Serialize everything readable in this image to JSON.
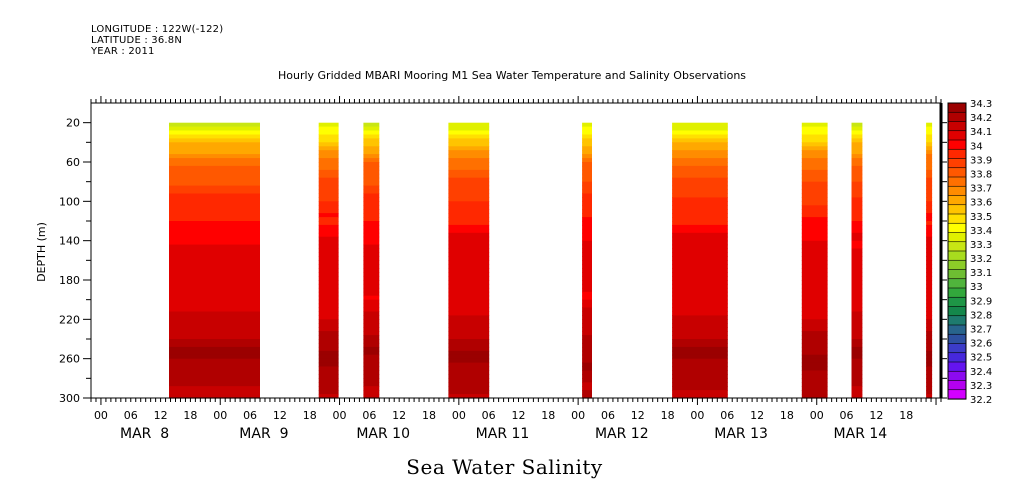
{
  "header": {
    "longitude": "LONGITUDE : 122W(-122)",
    "latitude": "LATITUDE : 36.8N",
    "year": "YEAR : 2011"
  },
  "chart_data": {
    "type": "heatmap",
    "title": "Hourly Gridded MBARI Mooring M1 Sea Water Temperature and Salinity Observations",
    "xlabel": "Sea Water Salinity",
    "ylabel": "DEPTH (m)",
    "y_reversed": true,
    "ylim": [
      0,
      300
    ],
    "yticks": [
      20,
      60,
      100,
      140,
      180,
      220,
      260,
      300
    ],
    "xlim_hours_from_mar8_00": [
      -2,
      169
    ],
    "x_hour_ticks": [
      "00",
      "06",
      "12",
      "18",
      "00",
      "06",
      "12",
      "18",
      "00",
      "06",
      "12",
      "18",
      "00",
      "06",
      "12",
      "18",
      "00",
      "06",
      "12",
      "18",
      "00",
      "06",
      "12",
      "18",
      "00",
      "06",
      "12",
      "18"
    ],
    "x_date_labels": [
      "MAR  8",
      "MAR  9",
      "MAR 10",
      "MAR 11",
      "MAR 12",
      "MAR 13",
      "MAR 14"
    ],
    "colorbar": {
      "levels": [
        34.3,
        34.2,
        34.1,
        34,
        33.9,
        33.8,
        33.7,
        33.6,
        33.5,
        33.4,
        33.3,
        33.2,
        33.1,
        33,
        32.9,
        32.8,
        32.7,
        32.6,
        32.5,
        32.4,
        32.3,
        32.2
      ],
      "labels": [
        "34.3",
        "34.2",
        "34.1",
        "34",
        "33.9",
        "33.8",
        "33.7",
        "33.6",
        "33.5",
        "33.4",
        "33.3",
        "33.2",
        "33.1",
        "33",
        "32.9",
        "32.8",
        "32.7",
        "32.6",
        "32.5",
        "32.4",
        "32.3",
        "32.2"
      ],
      "colors": [
        "#9b0000",
        "#b00000",
        "#c80000",
        "#e00000",
        "#ff0000",
        "#ff2800",
        "#ff4000",
        "#ff5800",
        "#ff7000",
        "#ff8c00",
        "#ffa800",
        "#ffc400",
        "#ffe000",
        "#ffff00",
        "#e0f000",
        "#c8e614",
        "#a8dc1e",
        "#8ccd28",
        "#6ebe32",
        "#50b43c",
        "#32a83c",
        "#1e9646",
        "#14874b",
        "#1e7a6e",
        "#28648c",
        "#2d50a0",
        "#3c3cc8",
        "#4628dc",
        "#6414f0",
        "#8c0af0",
        "#b400f0",
        "#d200ff"
      ]
    },
    "depth_profile_typical": [
      {
        "depth": 20,
        "value": 33.3
      },
      {
        "depth": 40,
        "value": 33.55
      },
      {
        "depth": 60,
        "value": 33.75
      },
      {
        "depth": 80,
        "value": 33.85
      },
      {
        "depth": 100,
        "value": 33.92
      },
      {
        "depth": 120,
        "value": 33.97
      },
      {
        "depth": 140,
        "value": 34.05
      },
      {
        "depth": 170,
        "value": 34.08
      },
      {
        "depth": 200,
        "value": 34.05
      },
      {
        "depth": 220,
        "value": 34.12
      },
      {
        "depth": 240,
        "value": 34.18
      },
      {
        "depth": 255,
        "value": 34.25
      },
      {
        "depth": 280,
        "value": 34.2
      },
      {
        "depth": 300,
        "value": 34.15
      }
    ],
    "data_segments_hours_from_mar8_00": [
      {
        "start": 13.7,
        "end": 32.0
      },
      {
        "start": 43.8,
        "end": 47.8
      },
      {
        "start": 52.8,
        "end": 56.0
      },
      {
        "start": 69.9,
        "end": 78.1
      },
      {
        "start": 96.8,
        "end": 98.8
      },
      {
        "start": 114.9,
        "end": 126.1
      },
      {
        "start": 141.0,
        "end": 146.2
      },
      {
        "start": 151.0,
        "end": 153.2
      },
      {
        "start": 166.0,
        "end": 167.2
      }
    ]
  }
}
